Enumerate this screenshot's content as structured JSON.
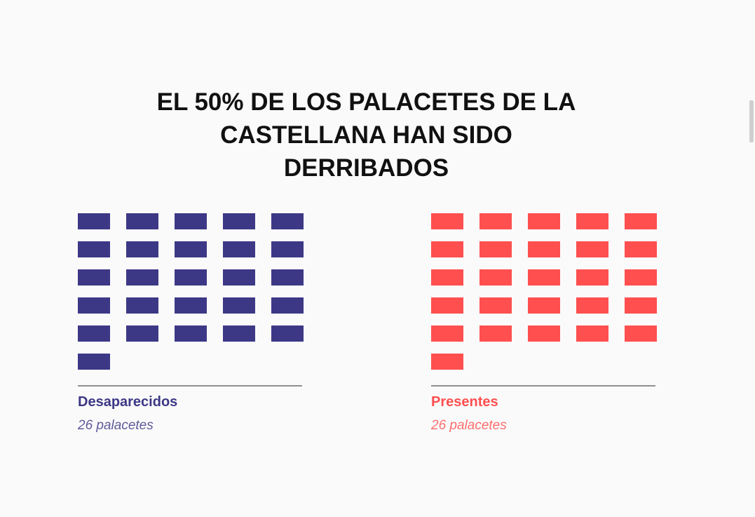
{
  "title": "EL 50% DE LOS PALACETES DE LA CASTELLANA HAN SIDO DERRIBADOS",
  "chart_data": {
    "type": "waffle",
    "title": "EL 50% DE LOS PALACETES DE LA CASTELLANA HAN SIDO DERRIBADOS",
    "series": [
      {
        "name": "Desaparecidos",
        "value": 26,
        "count_label": "26 palacetes",
        "color": "#3d3886"
      },
      {
        "name": "Presentes",
        "value": 26,
        "count_label": "26 palacetes",
        "color": "#ff4f4f"
      }
    ]
  }
}
